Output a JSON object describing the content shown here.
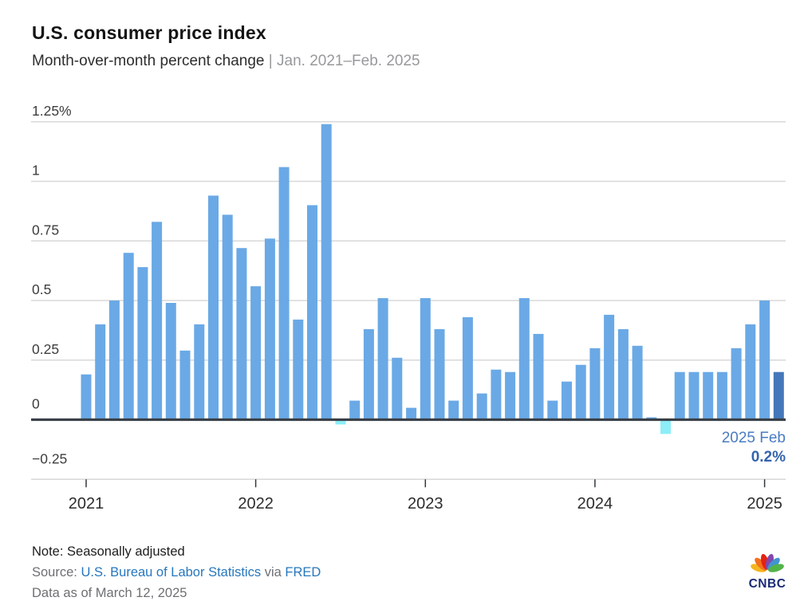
{
  "header": {
    "title": "U.S. consumer price index",
    "subtitle": "Month-over-month percent change",
    "separator": "|",
    "range": "Jan. 2021–Feb. 2025"
  },
  "chart_data": {
    "type": "bar",
    "title": "U.S. consumer price index",
    "subtitle": "Month-over-month percent change | Jan. 2021–Feb. 2025",
    "ylabel": "percent change",
    "ylim": [
      -0.25,
      1.25
    ],
    "grid": true,
    "months": [
      "Jan 2021",
      "Feb 2021",
      "Mar 2021",
      "Apr 2021",
      "May 2021",
      "Jun 2021",
      "Jul 2021",
      "Aug 2021",
      "Sep 2021",
      "Oct 2021",
      "Nov 2021",
      "Dec 2021",
      "Jan 2022",
      "Feb 2022",
      "Mar 2022",
      "Apr 2022",
      "May 2022",
      "Jun 2022",
      "Jul 2022",
      "Aug 2022",
      "Sep 2022",
      "Oct 2022",
      "Nov 2022",
      "Dec 2022",
      "Jan 2023",
      "Feb 2023",
      "Mar 2023",
      "Apr 2023",
      "May 2023",
      "Jun 2023",
      "Jul 2023",
      "Aug 2023",
      "Sep 2023",
      "Oct 2023",
      "Nov 2023",
      "Dec 2023",
      "Jan 2024",
      "Feb 2024",
      "Mar 2024",
      "Apr 2024",
      "May 2024",
      "Jun 2024",
      "Jul 2024",
      "Aug 2024",
      "Sep 2024",
      "Oct 2024",
      "Nov 2024",
      "Dec 2024",
      "Jan 2025",
      "Feb 2025"
    ],
    "values": [
      0.19,
      0.4,
      0.5,
      0.7,
      0.64,
      0.83,
      0.49,
      0.29,
      0.4,
      0.94,
      0.86,
      0.72,
      0.56,
      0.76,
      1.06,
      0.42,
      0.9,
      1.24,
      -0.02,
      0.08,
      0.38,
      0.51,
      0.26,
      0.05,
      0.51,
      0.38,
      0.08,
      0.43,
      0.11,
      0.21,
      0.2,
      0.51,
      0.36,
      0.08,
      0.16,
      0.23,
      0.3,
      0.44,
      0.38,
      0.31,
      0.01,
      -0.06,
      0.2,
      0.2,
      0.2,
      0.2,
      0.3,
      0.4,
      0.5,
      0.2
    ],
    "highlight_index": 49,
    "yticks": [
      {
        "value": 1.25,
        "label": "1.25%"
      },
      {
        "value": 1.0,
        "label": "1"
      },
      {
        "value": 0.75,
        "label": "0.75"
      },
      {
        "value": 0.5,
        "label": "0.5"
      },
      {
        "value": 0.25,
        "label": "0.25"
      },
      {
        "value": 0,
        "label": "0"
      },
      {
        "value": -0.25,
        "label": "−0.25"
      }
    ],
    "xticks": [
      {
        "index": 0,
        "label": "2021"
      },
      {
        "index": 12,
        "label": "2022"
      },
      {
        "index": 24,
        "label": "2023"
      },
      {
        "index": 36,
        "label": "2024"
      },
      {
        "index": 48,
        "label": "2025"
      }
    ],
    "annotation": {
      "label": "2025 Feb",
      "value": "0.2%"
    },
    "colors": {
      "bar": "#6aa9e6",
      "bar_negative": "#8ceef8",
      "bar_highlight": "#4478ba",
      "grid": "#d8d8d8",
      "axis": "#3a4048",
      "tick": "#33383d",
      "y_label": "#3d3d3d",
      "x_label": "#2d2d2d",
      "annotation_label": "#4a7cc2",
      "annotation_value": "#3564ad"
    }
  },
  "footer": {
    "note": "Note: Seasonally adjusted",
    "source_prefix": "Source:",
    "source_link_bls": "U.S. Bureau of Labor Statistics",
    "source_via": "via",
    "source_link_fred": "FRED",
    "data_as_of": "Data as of March 12, 2025"
  },
  "logo": {
    "text": "CNBC",
    "text_color": "#1b2a77",
    "feather_colors": [
      "#f5b51f",
      "#f4701f",
      "#e42313",
      "#8347ad",
      "#4294d0",
      "#52b448"
    ]
  }
}
